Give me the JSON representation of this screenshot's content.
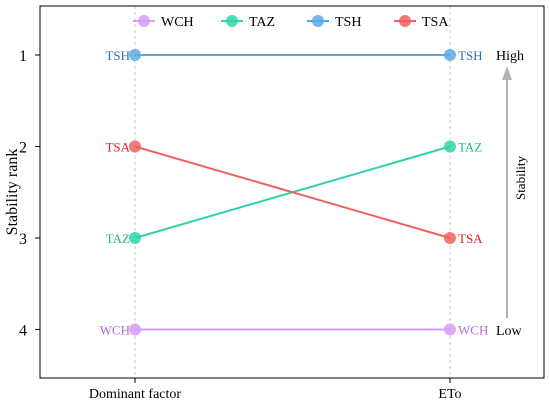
{
  "chart_data": {
    "type": "line",
    "title": "",
    "xlabel": "",
    "ylabel": "Stability rank",
    "categories": [
      "Dominant factor",
      "ETo"
    ],
    "yticks": [
      1,
      2,
      3,
      4
    ],
    "ylim": [
      0.58,
      4.5
    ],
    "y_reversed": true,
    "grid": "vertical dashed lines at categories",
    "legend_position": "top",
    "series": [
      {
        "name": "WCH",
        "values": [
          4,
          4
        ],
        "color": "#d59cf5"
      },
      {
        "name": "TAZ",
        "values": [
          3,
          2
        ],
        "color": "#2fd3a8"
      },
      {
        "name": "TSH",
        "values": [
          1,
          1
        ],
        "color": "#5aa9e6"
      },
      {
        "name": "TSA",
        "values": [
          2,
          3
        ],
        "color": "#f0625e"
      }
    ],
    "label_colors": {
      "WCH": "#b06ad8",
      "TAZ": "#1fb88e",
      "TSH": "#2f6fae",
      "TSA": "#e0201e"
    },
    "annotation": {
      "label": "Stability",
      "high": "High",
      "low": "Low",
      "arrow_color": "#b3b3b3"
    }
  }
}
